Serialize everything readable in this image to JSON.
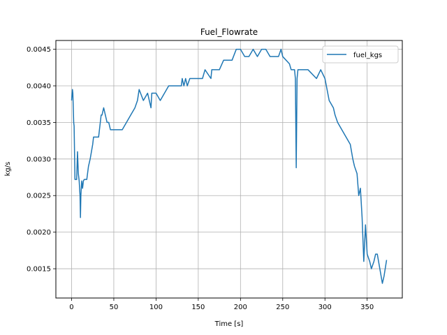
{
  "chart_data": {
    "type": "line",
    "title": "Fuel_Flowrate",
    "xlabel": "Time [s]",
    "ylabel": "kg/s",
    "xlim": [
      -18.6,
      391.6
    ],
    "ylim": [
      0.0011,
      0.00462
    ],
    "xticks": [
      0,
      50,
      100,
      150,
      200,
      250,
      300,
      350
    ],
    "yticks": [
      0.0015,
      0.002,
      0.0025,
      0.003,
      0.0035,
      0.004,
      0.0045
    ],
    "ytick_labels": [
      "0.0015",
      "0.0020",
      "0.0025",
      "0.0030",
      "0.0035",
      "0.0040",
      "0.0045"
    ],
    "grid": true,
    "legend": {
      "position": "upper right"
    },
    "colors": {
      "series": "#1f77b4",
      "grid": "#b0b0b0"
    },
    "series": [
      {
        "name": "fuel_kgs",
        "x": [
          0,
          1,
          1.5,
          2,
          2.5,
          3,
          4,
          5,
          6,
          7,
          8,
          9,
          10,
          10.5,
          11,
          12,
          13,
          14,
          15,
          16,
          18,
          20,
          22,
          25,
          26,
          28,
          30,
          32,
          33,
          34,
          35,
          36,
          38,
          40,
          42,
          44,
          46,
          48,
          50,
          55,
          60,
          65,
          70,
          75,
          78,
          80,
          85,
          90,
          94,
          95,
          100,
          105,
          110,
          115,
          120,
          125,
          130,
          131,
          133,
          135,
          137,
          140,
          145,
          150,
          155,
          158,
          165,
          166,
          170,
          175,
          180,
          190,
          195,
          200,
          205,
          210,
          215,
          220,
          225,
          230,
          235,
          240,
          245,
          248,
          250,
          258,
          260,
          262,
          264,
          265,
          266,
          267,
          268,
          270,
          280,
          290,
          295,
          300,
          305,
          310,
          312,
          315,
          320,
          325,
          330,
          333,
          335,
          338,
          340,
          342,
          344,
          346,
          348,
          350,
          353,
          355,
          358,
          360,
          362,
          365,
          368,
          370,
          373
        ],
        "y": [
          0.0038,
          0.00395,
          0.0039,
          0.0037,
          0.0035,
          0.00345,
          0.00272,
          0.00272,
          0.00272,
          0.0031,
          0.0028,
          0.0027,
          0.0025,
          0.0022,
          0.0025,
          0.0027,
          0.0026,
          0.0027,
          0.00272,
          0.00272,
          0.00272,
          0.0029,
          0.003,
          0.0032,
          0.0033,
          0.0033,
          0.0033,
          0.0033,
          0.0034,
          0.0035,
          0.0036,
          0.0036,
          0.0037,
          0.0036,
          0.0035,
          0.0035,
          0.0034,
          0.0034,
          0.0034,
          0.0034,
          0.0034,
          0.0035,
          0.0036,
          0.0037,
          0.0038,
          0.00395,
          0.0038,
          0.0039,
          0.0037,
          0.0039,
          0.0039,
          0.0038,
          0.0039,
          0.004,
          0.004,
          0.004,
          0.004,
          0.0041,
          0.004,
          0.0041,
          0.004,
          0.0041,
          0.0041,
          0.0041,
          0.0041,
          0.00422,
          0.0041,
          0.00422,
          0.00422,
          0.00422,
          0.00435,
          0.00435,
          0.0045,
          0.0045,
          0.0044,
          0.0044,
          0.0045,
          0.0044,
          0.0045,
          0.0045,
          0.0044,
          0.0044,
          0.0044,
          0.0045,
          0.0044,
          0.0043,
          0.00422,
          0.00422,
          0.00422,
          0.0041,
          0.00288,
          0.0041,
          0.00422,
          0.00422,
          0.00422,
          0.0041,
          0.00422,
          0.0041,
          0.0038,
          0.0037,
          0.0036,
          0.0035,
          0.0034,
          0.0033,
          0.0032,
          0.003,
          0.0029,
          0.0028,
          0.0025,
          0.0026,
          0.0022,
          0.0016,
          0.0021,
          0.0017,
          0.0016,
          0.0015,
          0.0016,
          0.0017,
          0.0017,
          0.0015,
          0.0013,
          0.0014,
          0.00162
        ]
      }
    ]
  }
}
